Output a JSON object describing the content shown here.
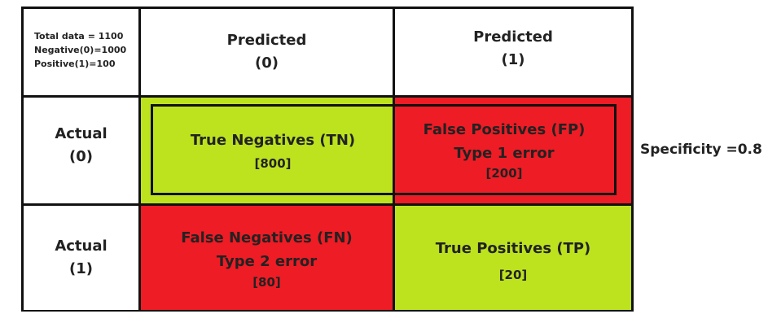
{
  "colors": {
    "green": "#bde31f",
    "red": "#ee1c25",
    "white": "#ffffff",
    "border": "#111111",
    "text": "#222222"
  },
  "corner": {
    "line1": "Total data = 1100",
    "line2": "Negative(0)=1000",
    "line3": "Positive(1)=100"
  },
  "headers": {
    "pred0_label": "Predicted",
    "pred0_value": "(0)",
    "pred1_label": "Predicted",
    "pred1_value": "(1)",
    "act0_label": "Actual",
    "act0_value": "(0)",
    "act1_label": "Actual",
    "act1_value": "(1)"
  },
  "cells": {
    "tn": {
      "label": "True Negatives (TN)",
      "count": "[800]"
    },
    "fp": {
      "label": "False Positives (FP)",
      "sub": "Type 1 error",
      "count": "[200]"
    },
    "fn": {
      "label": "False Negatives (FN)",
      "sub": "Type 2 error",
      "count": "[80]"
    },
    "tp": {
      "label": "True Positives (TP)",
      "count": "[20]"
    }
  },
  "metric": {
    "specificity": "Specificity =0.8"
  }
}
